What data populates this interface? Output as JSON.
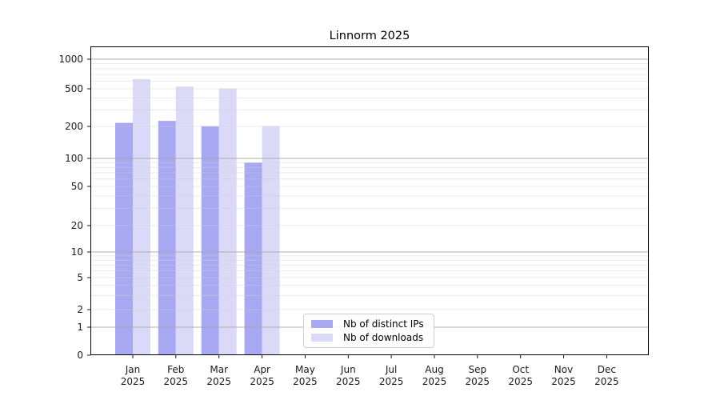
{
  "chart_data": {
    "type": "bar",
    "title": "Linnorm 2025",
    "categories": [
      "Jan",
      "Feb",
      "Mar",
      "Apr",
      "May",
      "Jun",
      "Jul",
      "Aug",
      "Sep",
      "Oct",
      "Nov",
      "Dec"
    ],
    "year_label": "2025",
    "series": [
      {
        "name": "Nb of distinct IPs",
        "color": "#a7a7f2",
        "values": [
          218,
          229,
          201,
          90,
          0,
          0,
          0,
          0,
          0,
          0,
          0,
          0
        ]
      },
      {
        "name": "Nb of downloads",
        "color": "#dadaf8",
        "values": [
          627,
          527,
          504,
          202,
          0,
          0,
          0,
          0,
          0,
          0,
          0,
          0
        ]
      }
    ],
    "xlabel": "",
    "ylabel": "",
    "yscale": "symlog",
    "y_ticks": [
      0,
      1,
      2,
      5,
      10,
      20,
      50,
      100,
      200,
      500,
      1000
    ],
    "ylim": [
      0,
      1350
    ],
    "grid": {
      "major_lines": [
        1,
        10,
        100,
        1000
      ],
      "minor_multiples_per_decade": [
        2,
        3,
        4,
        5,
        6,
        7,
        8,
        9
      ],
      "enabled": true
    },
    "legend_position": "lower center"
  }
}
